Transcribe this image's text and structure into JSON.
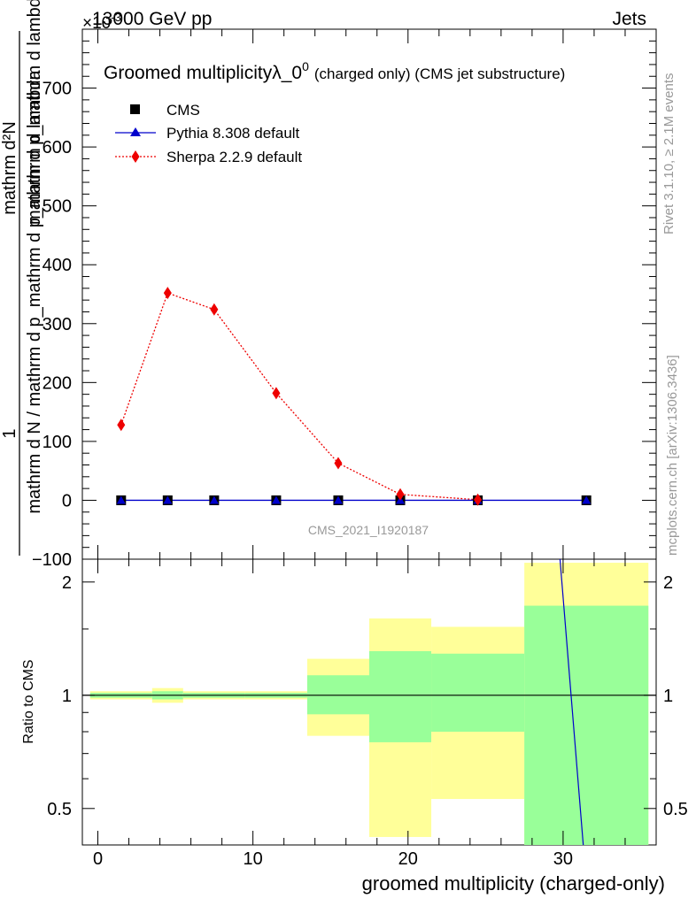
{
  "header": {
    "left": "13000 GeV pp",
    "right": "Jets",
    "multiplier": "×10",
    "multiplier_exp": "-3"
  },
  "side_labels": {
    "rivet": "Rivet 3.1.10, ≥ 2.1M events",
    "mcplots": "mcplots.cern.ch [arXiv:1306.3436]"
  },
  "chart_data": {
    "type": "line",
    "title": "Groomed multiplicityλ_0",
    "title_sup": "0",
    "title_suffix": "(charged only) (CMS jet substructure)",
    "ylabel_num": "1",
    "ylabel_den": "mathrm d N / mathrm d p_mathrm d p_mathrm d lambda",
    "ylabel_num_frac": "mathrm d²N",
    "ylabel_den_frac": "mathrm d p_mathrm d lambda",
    "xlabel": "groomed multiplicity (charged-only)",
    "analysis_label": "CMS_2021_I1920187",
    "xlim": [
      -1,
      36
    ],
    "ylim": [
      -100,
      800
    ],
    "yticks": [
      -100,
      0,
      100,
      200,
      300,
      400,
      500,
      600,
      700
    ],
    "xticks": [
      0,
      10,
      20,
      30
    ],
    "legend_position": "top-left",
    "series": [
      {
        "name": "CMS",
        "color": "#000000",
        "marker": "square",
        "x": [
          1.5,
          4.5,
          7.5,
          11.5,
          15.5,
          19.5,
          24.5,
          31.5
        ],
        "y": [
          0,
          0,
          0,
          0,
          0,
          0,
          0,
          0
        ]
      },
      {
        "name": "Pythia 8.308 default",
        "color": "#0000cc",
        "marker": "triangle",
        "x": [
          1.5,
          4.5,
          7.5,
          11.5,
          15.5,
          19.5,
          24.5,
          31.5
        ],
        "y": [
          0,
          0,
          0,
          0,
          0,
          0,
          0,
          0
        ]
      },
      {
        "name": "Sherpa 2.2.9 default",
        "color": "#ee0000",
        "marker": "diamond",
        "x": [
          1.5,
          4.5,
          7.5,
          11.5,
          15.5,
          19.5,
          24.5
        ],
        "y": [
          128,
          352,
          324,
          182,
          63,
          10,
          1
        ]
      }
    ],
    "ratio": {
      "ylabel": "Ratio to CMS",
      "ylim": [
        0.4,
        2.3
      ],
      "yticks": [
        0.5,
        1,
        2
      ],
      "ytick_labels": [
        "0.5",
        "1",
        "2"
      ],
      "bins": [
        {
          "x0": -0.5,
          "x1": 3.5,
          "inner": [
            0.985,
            1.015
          ],
          "outer": [
            0.975,
            1.025
          ]
        },
        {
          "x0": 3.5,
          "x1": 5.5,
          "inner": [
            0.975,
            1.025
          ],
          "outer": [
            0.955,
            1.045
          ]
        },
        {
          "x0": 5.5,
          "x1": 9.5,
          "inner": [
            0.985,
            1.015
          ],
          "outer": [
            0.975,
            1.025
          ]
        },
        {
          "x0": 9.5,
          "x1": 13.5,
          "inner": [
            0.985,
            1.015
          ],
          "outer": [
            0.975,
            1.025
          ]
        },
        {
          "x0": 13.5,
          "x1": 17.5,
          "inner": [
            0.89,
            1.13
          ],
          "outer": [
            0.78,
            1.25
          ]
        },
        {
          "x0": 17.5,
          "x1": 21.5,
          "inner": [
            0.75,
            1.31
          ],
          "outer": [
            0.42,
            1.6
          ]
        },
        {
          "x0": 21.5,
          "x1": 27.5,
          "inner": [
            0.8,
            1.29
          ],
          "outer": [
            0.53,
            1.52
          ]
        },
        {
          "x0": 27.5,
          "x1": 35.5,
          "inner": [
            0.35,
            1.73
          ],
          "outer": [
            0.35,
            2.25
          ]
        }
      ],
      "pythia_line": {
        "x": [
          29.8,
          31.3
        ],
        "y": [
          2.3,
          0.4
        ]
      }
    }
  }
}
